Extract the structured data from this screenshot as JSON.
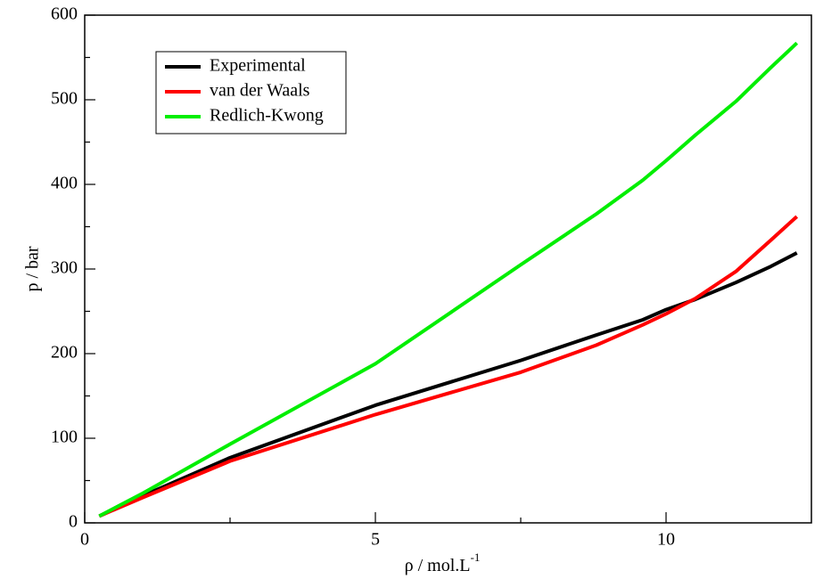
{
  "chart_data": {
    "type": "line",
    "xlabel": "ρ / mol.L",
    "xlabel_superscript": "-1",
    "ylabel": "p / bar",
    "x": [
      0.25,
      1,
      2.5,
      5,
      7.5,
      8.8,
      9.6,
      10,
      10.5,
      11.2,
      11.8,
      12.25
    ],
    "series": [
      {
        "name": "Experimental",
        "color": "#000000",
        "values": [
          8,
          32,
          77,
          139,
          192,
          222,
          240,
          252,
          264,
          284,
          303,
          319
        ]
      },
      {
        "name": "van der Waals",
        "color": "#ff0000",
        "values": [
          8,
          30,
          73,
          128,
          178,
          210,
          234,
          247,
          265,
          297,
          334,
          362
        ]
      },
      {
        "name": "Redlich-Kwong",
        "color": "#00ee00",
        "values": [
          8,
          35,
          93,
          188,
          305,
          365,
          405,
          428,
          458,
          498,
          538,
          567
        ]
      }
    ],
    "xlim": [
      0,
      12.5
    ],
    "xticks": [
      0,
      5,
      10
    ],
    "xminorticks": [
      2.5,
      7.5
    ],
    "ylim": [
      0,
      600
    ],
    "yticks": [
      0,
      100,
      200,
      300,
      400,
      500,
      600
    ],
    "yminorticks": [
      50,
      150,
      250,
      350,
      450,
      550
    ],
    "grid": false,
    "legend": "upper left"
  }
}
